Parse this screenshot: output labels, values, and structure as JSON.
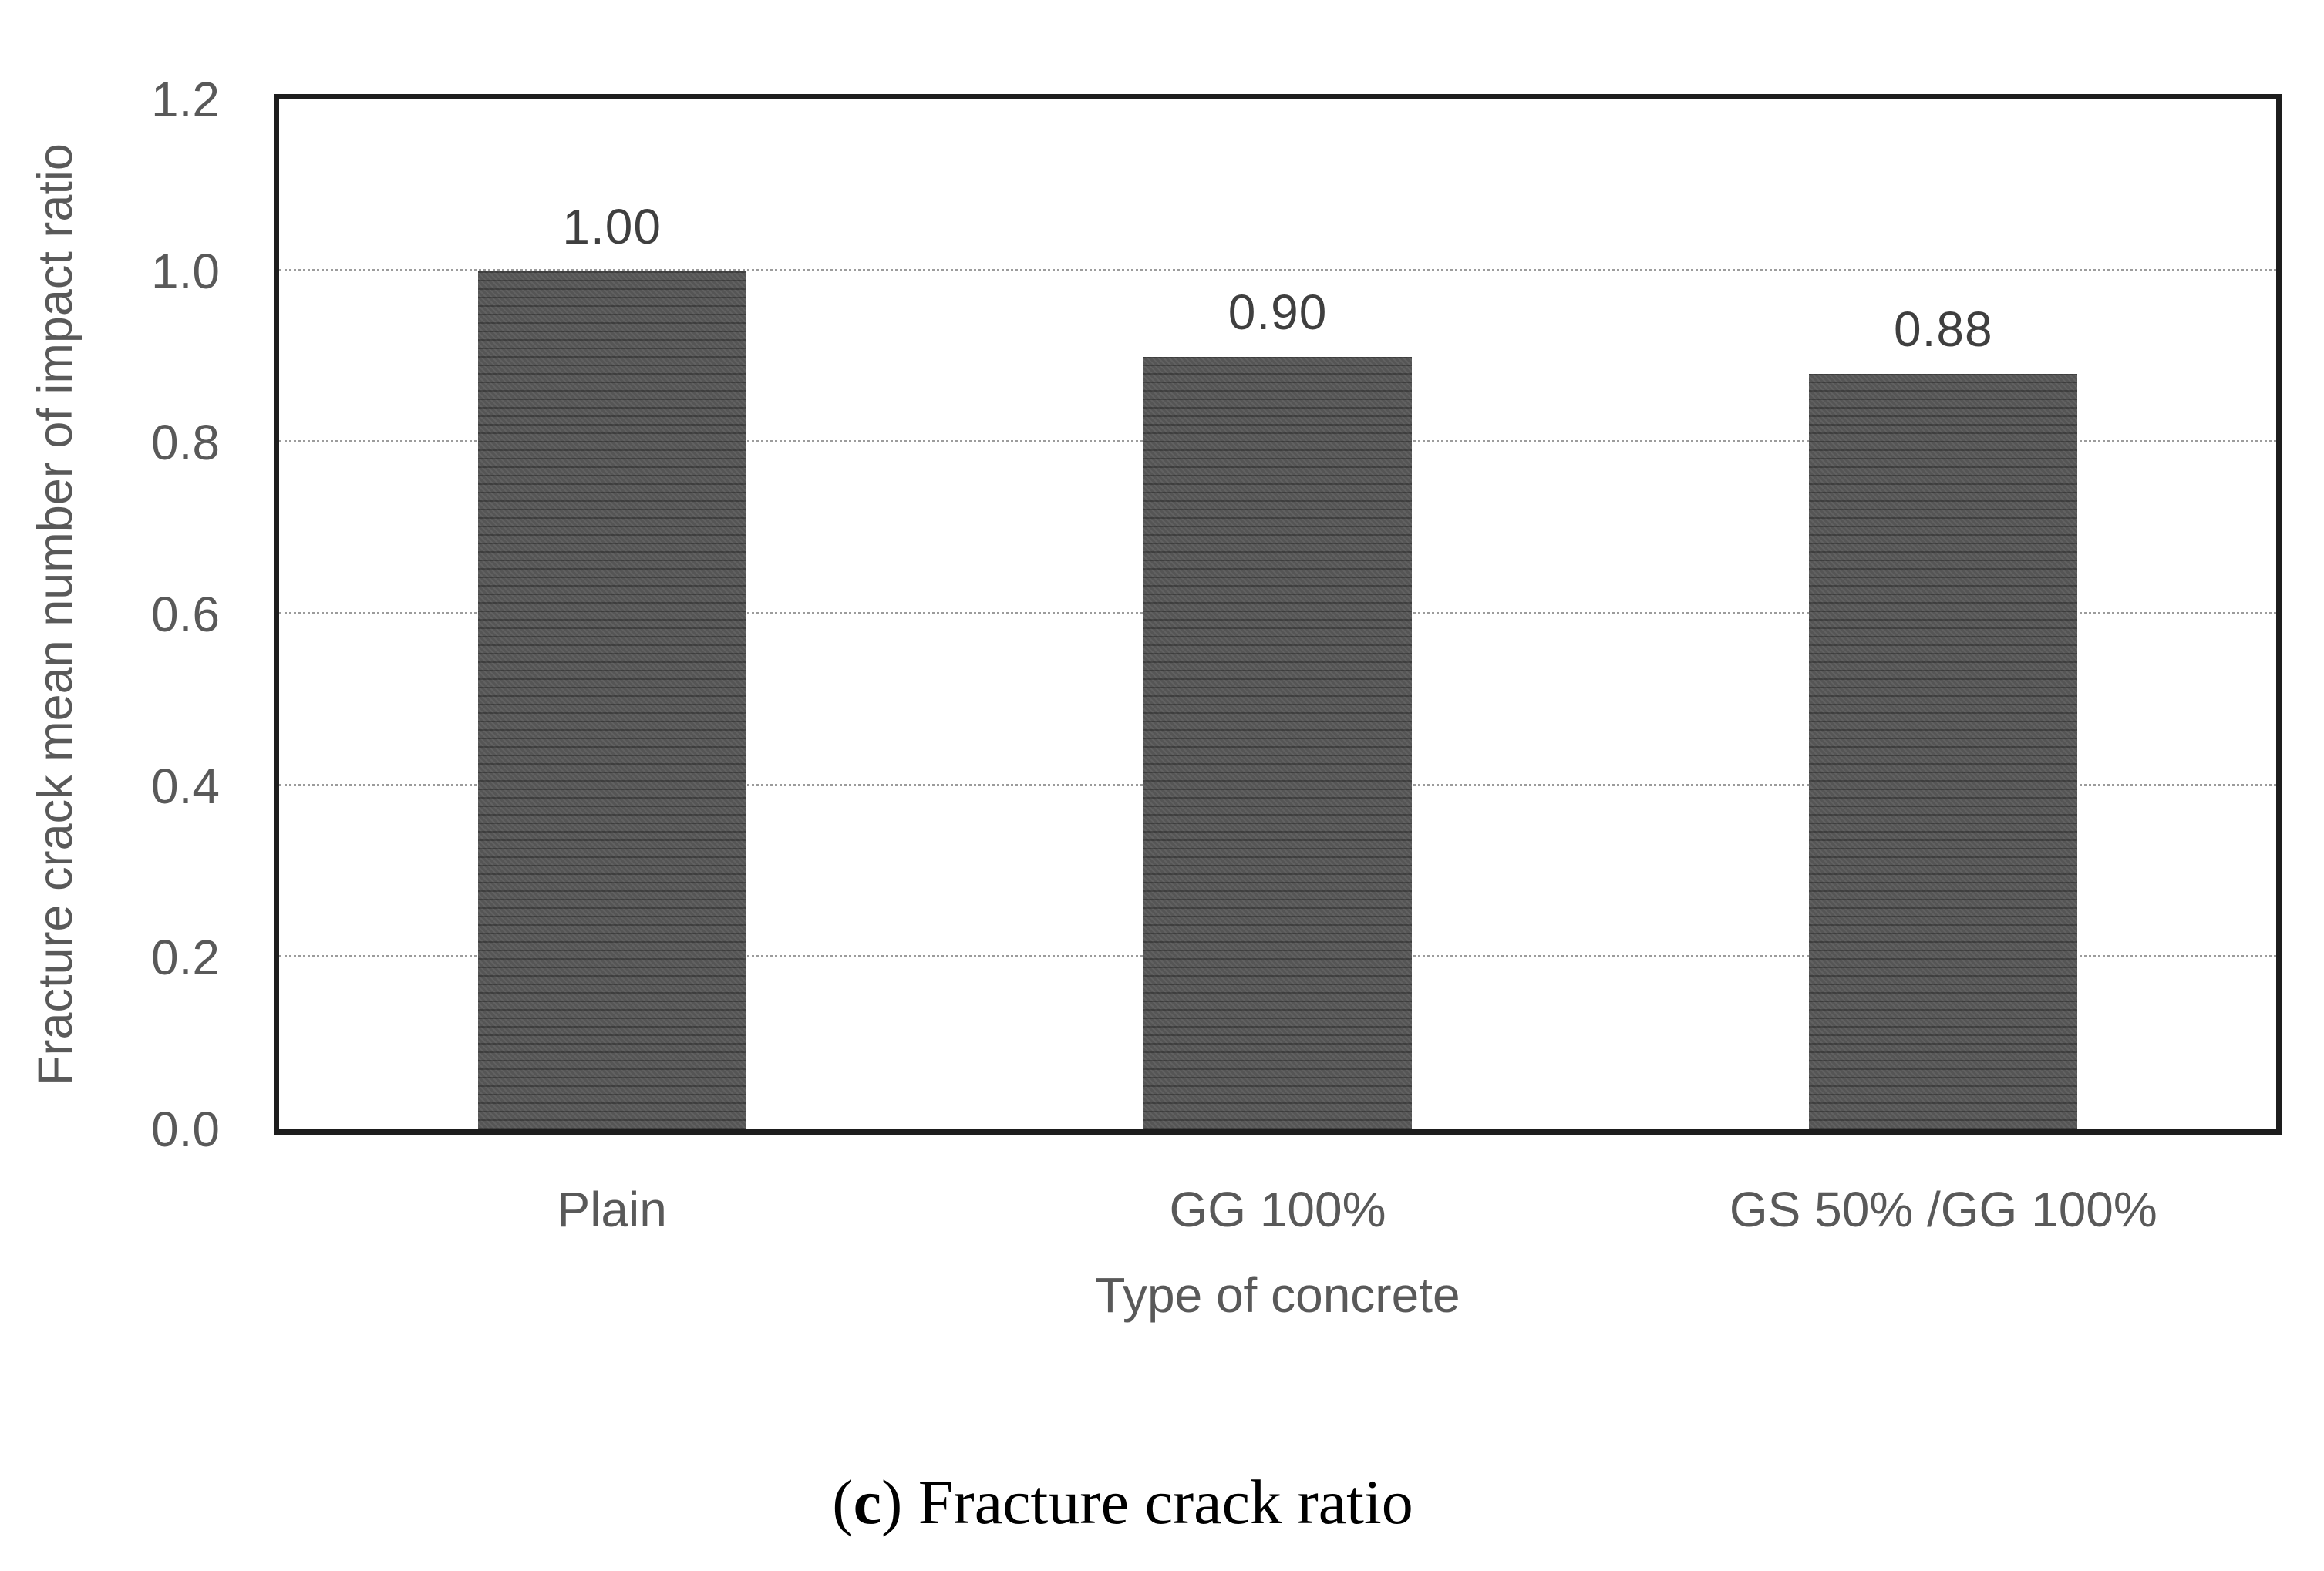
{
  "chart_data": {
    "type": "bar",
    "categories": [
      "Plain",
      "GG 100%",
      "GS 50% /GG 100%"
    ],
    "values": [
      1.0,
      0.9,
      0.88
    ],
    "data_labels": [
      "1.00",
      "0.90",
      "0.88"
    ],
    "xlabel": "Type of concrete",
    "ylabel": "Fracture crack mean number of impact ratio",
    "ylim": [
      0.0,
      1.2
    ],
    "ytick_labels": [
      "0.0",
      "0.2",
      "0.4",
      "0.6",
      "0.8",
      "1.0",
      "1.2"
    ],
    "gridlines": {
      "horizontal": true,
      "style": "dotted",
      "at": [
        0.2,
        0.4,
        0.6,
        0.8,
        1.0
      ]
    },
    "legend": "none",
    "bar_color": "#555555",
    "axis_text_color": "#595959",
    "data_label_color": "#3f3f3f"
  },
  "caption": {
    "open": "(",
    "index": "c",
    "close": ")",
    "text": " Fracture crack ratio"
  }
}
